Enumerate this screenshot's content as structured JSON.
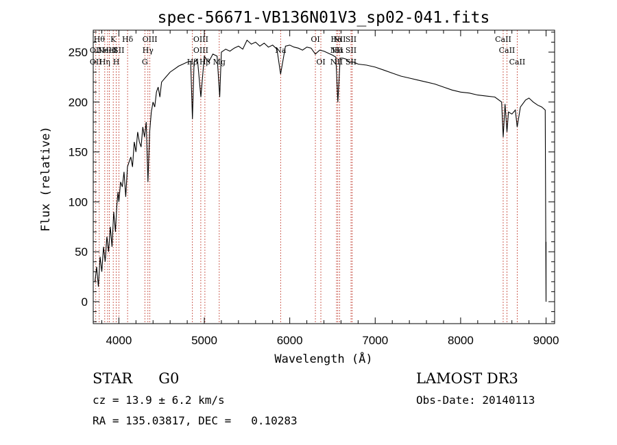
{
  "chart_data": {
    "type": "line",
    "title": "spec-56671-VB136N01V3_sp02-041.fits",
    "xlabel": "Wavelength (Å)",
    "ylabel": "Flux (relative)",
    "xlim": [
      3700,
      9100
    ],
    "ylim": [
      -22,
      272
    ],
    "xticks": [
      4000,
      5000,
      6000,
      7000,
      8000,
      9000
    ],
    "yticks": [
      0,
      50,
      100,
      150,
      200,
      250
    ],
    "series": [
      {
        "name": "flux",
        "x": [
          3720,
          3740,
          3760,
          3780,
          3800,
          3820,
          3840,
          3860,
          3880,
          3900,
          3920,
          3940,
          3960,
          3975,
          3990,
          4000,
          4020,
          4040,
          4060,
          4080,
          4100,
          4120,
          4140,
          4160,
          4180,
          4200,
          4220,
          4240,
          4260,
          4280,
          4300,
          4320,
          4340,
          4360,
          4380,
          4400,
          4420,
          4440,
          4460,
          4480,
          4500,
          4550,
          4600,
          4650,
          4700,
          4750,
          4800,
          4840,
          4861,
          4880,
          4920,
          4960,
          5000,
          5050,
          5100,
          5150,
          5180,
          5200,
          5250,
          5300,
          5350,
          5400,
          5450,
          5500,
          5550,
          5600,
          5650,
          5700,
          5750,
          5800,
          5850,
          5893,
          5950,
          6000,
          6050,
          6100,
          6150,
          6200,
          6250,
          6300,
          6350,
          6400,
          6450,
          6500,
          6540,
          6563,
          6590,
          6620,
          6660,
          6700,
          6750,
          6800,
          6900,
          7000,
          7100,
          7200,
          7300,
          7400,
          7500,
          7600,
          7700,
          7800,
          7900,
          8000,
          8100,
          8200,
          8300,
          8400,
          8480,
          8498,
          8520,
          8542,
          8560,
          8600,
          8640,
          8662,
          8700,
          8760,
          8800,
          8850,
          8900,
          8950,
          8990,
          9000
        ],
        "values": [
          20,
          35,
          15,
          45,
          30,
          55,
          40,
          65,
          50,
          75,
          55,
          90,
          70,
          95,
          110,
          100,
          120,
          115,
          130,
          105,
          135,
          140,
          145,
          135,
          160,
          150,
          170,
          160,
          155,
          175,
          165,
          180,
          120,
          170,
          190,
          200,
          195,
          210,
          215,
          205,
          220,
          225,
          230,
          233,
          236,
          238,
          240,
          241,
          183,
          240,
          243,
          205,
          246,
          240,
          248,
          246,
          205,
          250,
          253,
          251,
          254,
          256,
          253,
          262,
          258,
          260,
          256,
          259,
          255,
          257,
          253,
          228,
          256,
          257,
          255,
          254,
          252,
          255,
          254,
          248,
          252,
          251,
          249,
          247,
          245,
          200,
          244,
          244,
          243,
          240,
          240,
          238,
          237,
          235,
          232,
          229,
          226,
          224,
          222,
          220,
          218,
          215,
          212,
          210,
          209,
          207,
          206,
          205,
          200,
          165,
          198,
          170,
          190,
          188,
          192,
          175,
          195,
          202,
          204,
          200,
          197,
          195,
          192,
          0
        ]
      }
    ],
    "lines": [
      {
        "wave": 3730,
        "labels": [
          "",
          "OII",
          "OII"
        ]
      },
      {
        "wave": 3770,
        "labels": [
          "Hθ",
          "",
          ""
        ]
      },
      {
        "wave": 3835,
        "labels": [
          "",
          "",
          "Hη"
        ]
      },
      {
        "wave": 3868,
        "labels": [
          "",
          "NeIII",
          ""
        ]
      },
      {
        "wave": 3889,
        "labels": [
          "",
          "HeI",
          ""
        ]
      },
      {
        "wave": 3934,
        "labels": [
          "K",
          "",
          ""
        ]
      },
      {
        "wave": 3969,
        "labels": [
          "",
          "",
          "H"
        ]
      },
      {
        "wave": 4000,
        "labels": [
          "",
          "SII",
          ""
        ]
      },
      {
        "wave": 4102,
        "labels": [
          "Hδ",
          "",
          ""
        ]
      },
      {
        "wave": 4304,
        "labels": [
          "",
          "",
          "G"
        ]
      },
      {
        "wave": 4340,
        "labels": [
          "",
          "Hγ",
          ""
        ]
      },
      {
        "wave": 4363,
        "labels": [
          "OIII",
          "",
          ""
        ]
      },
      {
        "wave": 4861,
        "labels": [
          "",
          "",
          "Hβ"
        ]
      },
      {
        "wave": 4959,
        "labels": [
          "OIII",
          "OIII",
          ""
        ]
      },
      {
        "wave": 5007,
        "labels": [
          "",
          "",
          "Hβ"
        ]
      },
      {
        "wave": 5175,
        "labels": [
          "",
          "",
          "Mg"
        ]
      },
      {
        "wave": 5893,
        "labels": [
          "",
          "Na",
          ""
        ]
      },
      {
        "wave": 6300,
        "labels": [
          "OI",
          "",
          ""
        ]
      },
      {
        "wave": 6364,
        "labels": [
          "",
          "",
          "OI"
        ]
      },
      {
        "wave": 6548,
        "labels": [
          "Hα",
          "NII",
          "NII"
        ]
      },
      {
        "wave": 6563,
        "labels": [
          "",
          "Hα",
          ""
        ]
      },
      {
        "wave": 6583,
        "labels": [
          "NII",
          "",
          ""
        ]
      },
      {
        "wave": 6717,
        "labels": [
          "SII",
          "SII",
          "SII"
        ]
      },
      {
        "wave": 6731,
        "labels": [
          "",
          "",
          ""
        ]
      },
      {
        "wave": 8498,
        "labels": [
          "CaII",
          "",
          ""
        ]
      },
      {
        "wave": 8542,
        "labels": [
          "",
          "CaII",
          ""
        ]
      },
      {
        "wave": 8662,
        "labels": [
          "",
          "",
          "CaII"
        ]
      }
    ]
  },
  "info": {
    "object_class": "STAR",
    "subclass": "G0",
    "cz": "cz = 13.9 ± 6.2 km/s",
    "radec": "RA = 135.03817, DEC =   0.10283",
    "survey": "LAMOST DR3",
    "obs_date": "Obs-Date: 20140113"
  }
}
